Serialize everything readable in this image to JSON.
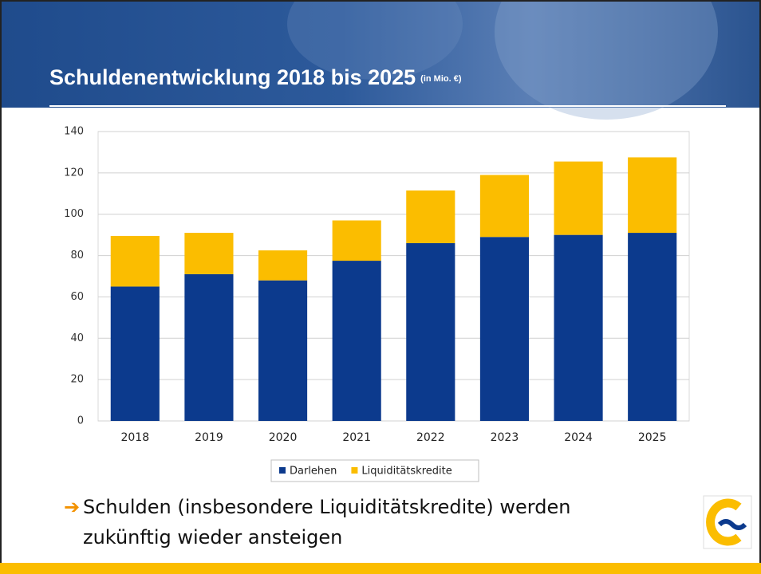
{
  "slide": {
    "title": "Schuldenentwicklung 2018 bis 2025",
    "title_unit": "(in Mio. €)",
    "bullet": [
      "Schulden (insbesondere Liquiditätskredite) werden",
      "zukünftig wieder ansteigen"
    ]
  },
  "chart_data": {
    "type": "stacked_bar",
    "categories": [
      "2018",
      "2019",
      "2020",
      "2021",
      "2022",
      "2023",
      "2024",
      "2025"
    ],
    "series": [
      {
        "name": "Darlehen",
        "color": "#0c3a8d",
        "values": [
          65,
          71,
          68,
          77.5,
          86,
          89,
          90,
          91
        ]
      },
      {
        "name": "Liquiditätskredite",
        "color": "#fbbd00",
        "values": [
          24.5,
          20,
          14.5,
          19.5,
          25.5,
          30,
          35.5,
          36.5
        ]
      }
    ],
    "ylim": [
      0,
      140
    ],
    "yticks": [
      0,
      20,
      40,
      60,
      80,
      100,
      120,
      140
    ],
    "grid": true,
    "legend": "bottom"
  }
}
